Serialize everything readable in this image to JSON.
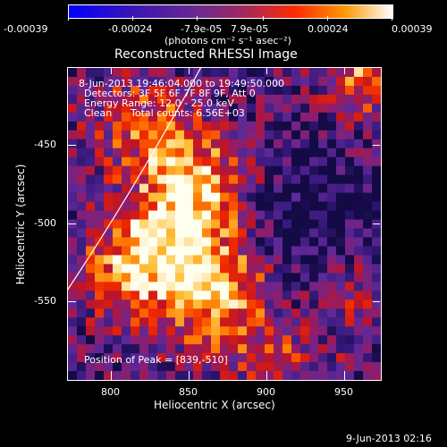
{
  "colorbar": {
    "tick_labels": [
      "-0.00039",
      "-0.00024",
      "-7.9e-05",
      "7.9e-05",
      "0.00024",
      "0.00039"
    ],
    "unit_label": "(photons cm⁻² s⁻¹ asec⁻²)"
  },
  "image": {
    "title": "Reconstructed RHESSI Image",
    "time_range": "8-Jun-2013 19:46:04.000 to 19:49:50.000",
    "detectors": "Detectors: 3F 5F 6F 7F 8F 9F, Att 0",
    "energy": "Energy Range: 12.0 - 25.0 keV",
    "clean": "Clean",
    "total_counts": "Total counts: 6.56E+03",
    "peak": "Position of Peak = [839,-510]",
    "xlabel": "Heliocentric X (arcsec)",
    "ylabel": "Heliocentric Y (arcsec)",
    "xticks": [
      "800",
      "850",
      "900",
      "950"
    ],
    "yticks": [
      "-450",
      "-500",
      "-550"
    ],
    "xrange": [
      775,
      965
    ],
    "yrange": [
      -595,
      -405
    ],
    "peak_position": [
      839,
      -510
    ]
  },
  "footer": {
    "timestamp": "9-Jun-2013 02:16"
  }
}
